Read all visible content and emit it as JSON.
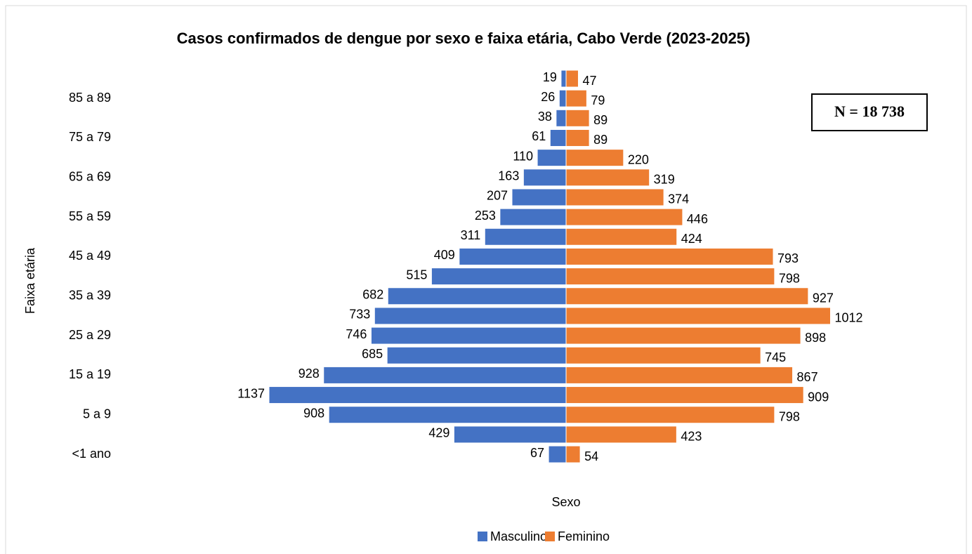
{
  "chart_data": {
    "type": "pyramid",
    "title": "Casos confirmados de dengue por sexo e faixa etária, Cabo Verde (2023-2025)",
    "y_label": "Faixa etária",
    "x_label": "Sexo",
    "annotation": "N = 18 738",
    "categories": [
      null,
      "85 a 89",
      null,
      "75 a 79",
      null,
      "65 a 69",
      null,
      "55 a 59",
      null,
      "45 a 49",
      null,
      "35 a 39",
      null,
      "25 a 29",
      null,
      "15 a 19",
      null,
      "5 a 9",
      null,
      "<1 ano"
    ],
    "series": [
      {
        "name": "Masculino",
        "color": "#4472c4",
        "values": [
          19,
          26,
          38,
          61,
          110,
          163,
          207,
          253,
          311,
          409,
          515,
          682,
          733,
          746,
          685,
          928,
          1137,
          908,
          429,
          67
        ]
      },
      {
        "name": "Feminino",
        "color": "#ed7d31",
        "values": [
          47,
          79,
          89,
          89,
          220,
          319,
          374,
          446,
          424,
          793,
          798,
          927,
          1012,
          898,
          745,
          867,
          909,
          798,
          423,
          54
        ]
      }
    ]
  }
}
